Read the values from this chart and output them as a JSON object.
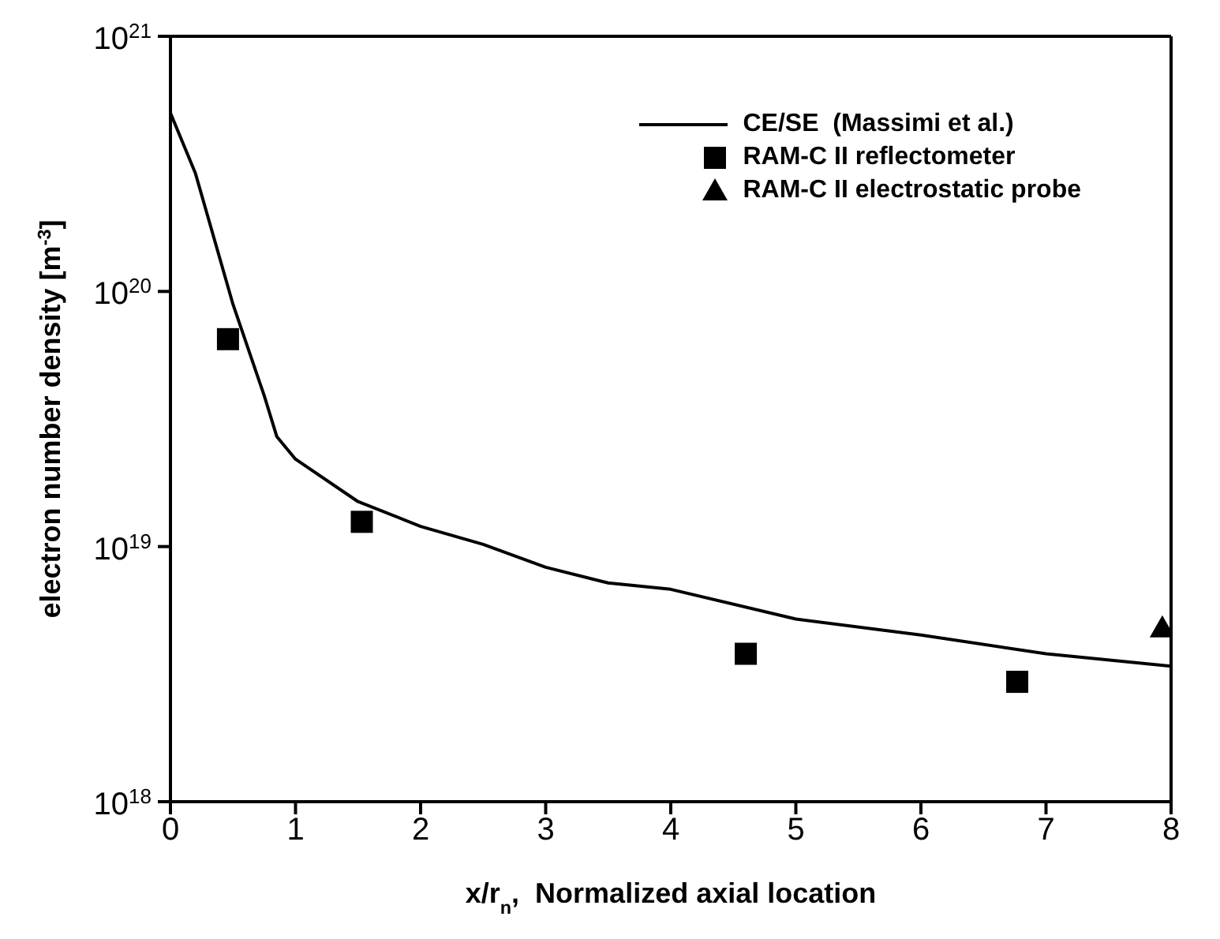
{
  "chart_data": {
    "type": "line",
    "xlabel": "x/r$_{n}$,  Normalized axial location",
    "ylabel": "electron number density [m$^{-3}$]",
    "log": "y",
    "xlim": [
      0,
      8
    ],
    "xticks": [
      0,
      1,
      2,
      3,
      4,
      5,
      6,
      7,
      8
    ],
    "ylim": [
      1e+18,
      1e+21
    ],
    "yticks": [
      {
        "value": 1e+18,
        "label": "10$^{18}$"
      },
      {
        "value": 1e+19,
        "label": "10$^{19}$"
      },
      {
        "value": 1e+20,
        "label": "10$^{20}$"
      },
      {
        "value": 1e+21,
        "label": "10$^{21}$"
      }
    ],
    "grid": false,
    "legend": "top right",
    "series": [
      {
        "name": "CE/SE  (Massimi et al.)",
        "color": "#000000",
        "marker": "none",
        "line_style": "solid",
        "x": [
          0,
          0.2,
          0.5,
          0.75,
          0.85,
          1,
          1.5,
          2,
          2.5,
          3,
          3.5,
          4,
          5,
          6,
          7,
          8
        ],
        "values": [
          5e+20,
          2.9e+20,
          8.9e+19,
          3.9e+19,
          2.7e+19,
          2.2e+19,
          1.5e+19,
          1.2e+19,
          1.02e+19,
          8.3e+18,
          7.2e+18,
          6.8e+18,
          5.2e+18,
          4.5e+18,
          3.8e+18,
          3.4e+18
        ]
      },
      {
        "name": "RAM-C II reflectometer",
        "type": "scatter",
        "color": "#000000",
        "marker": "square",
        "x": [
          0.46,
          1.53,
          4.6,
          6.77
        ],
        "values": [
          6.5e+19,
          1.25e+19,
          3.8e+18,
          2.95e+18
        ]
      },
      {
        "name": "RAM-C II electrostatic probe",
        "type": "scatter",
        "color": "#000000",
        "marker": "triangle",
        "x": [
          7.93
        ],
        "values": [
          4.8e+18
        ]
      }
    ]
  }
}
